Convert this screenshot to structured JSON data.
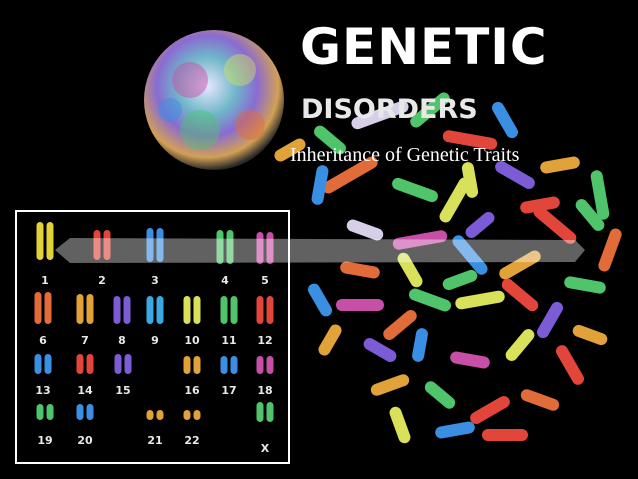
{
  "title": {
    "line1": "GENETIC",
    "line2": "DISORDERS",
    "subtitle": "Inheritance of Genetic Traits"
  },
  "karyotype": {
    "labels": [
      "1",
      "2",
      "3",
      "4",
      "5",
      "6",
      "7",
      "8",
      "9",
      "10",
      "11",
      "12",
      "13",
      "14",
      "15",
      "16",
      "17",
      "18",
      "19",
      "20",
      "21",
      "22",
      "X"
    ]
  },
  "colors": {
    "background": "#000000",
    "text": "#ffffff",
    "frame": "#ffffff"
  }
}
